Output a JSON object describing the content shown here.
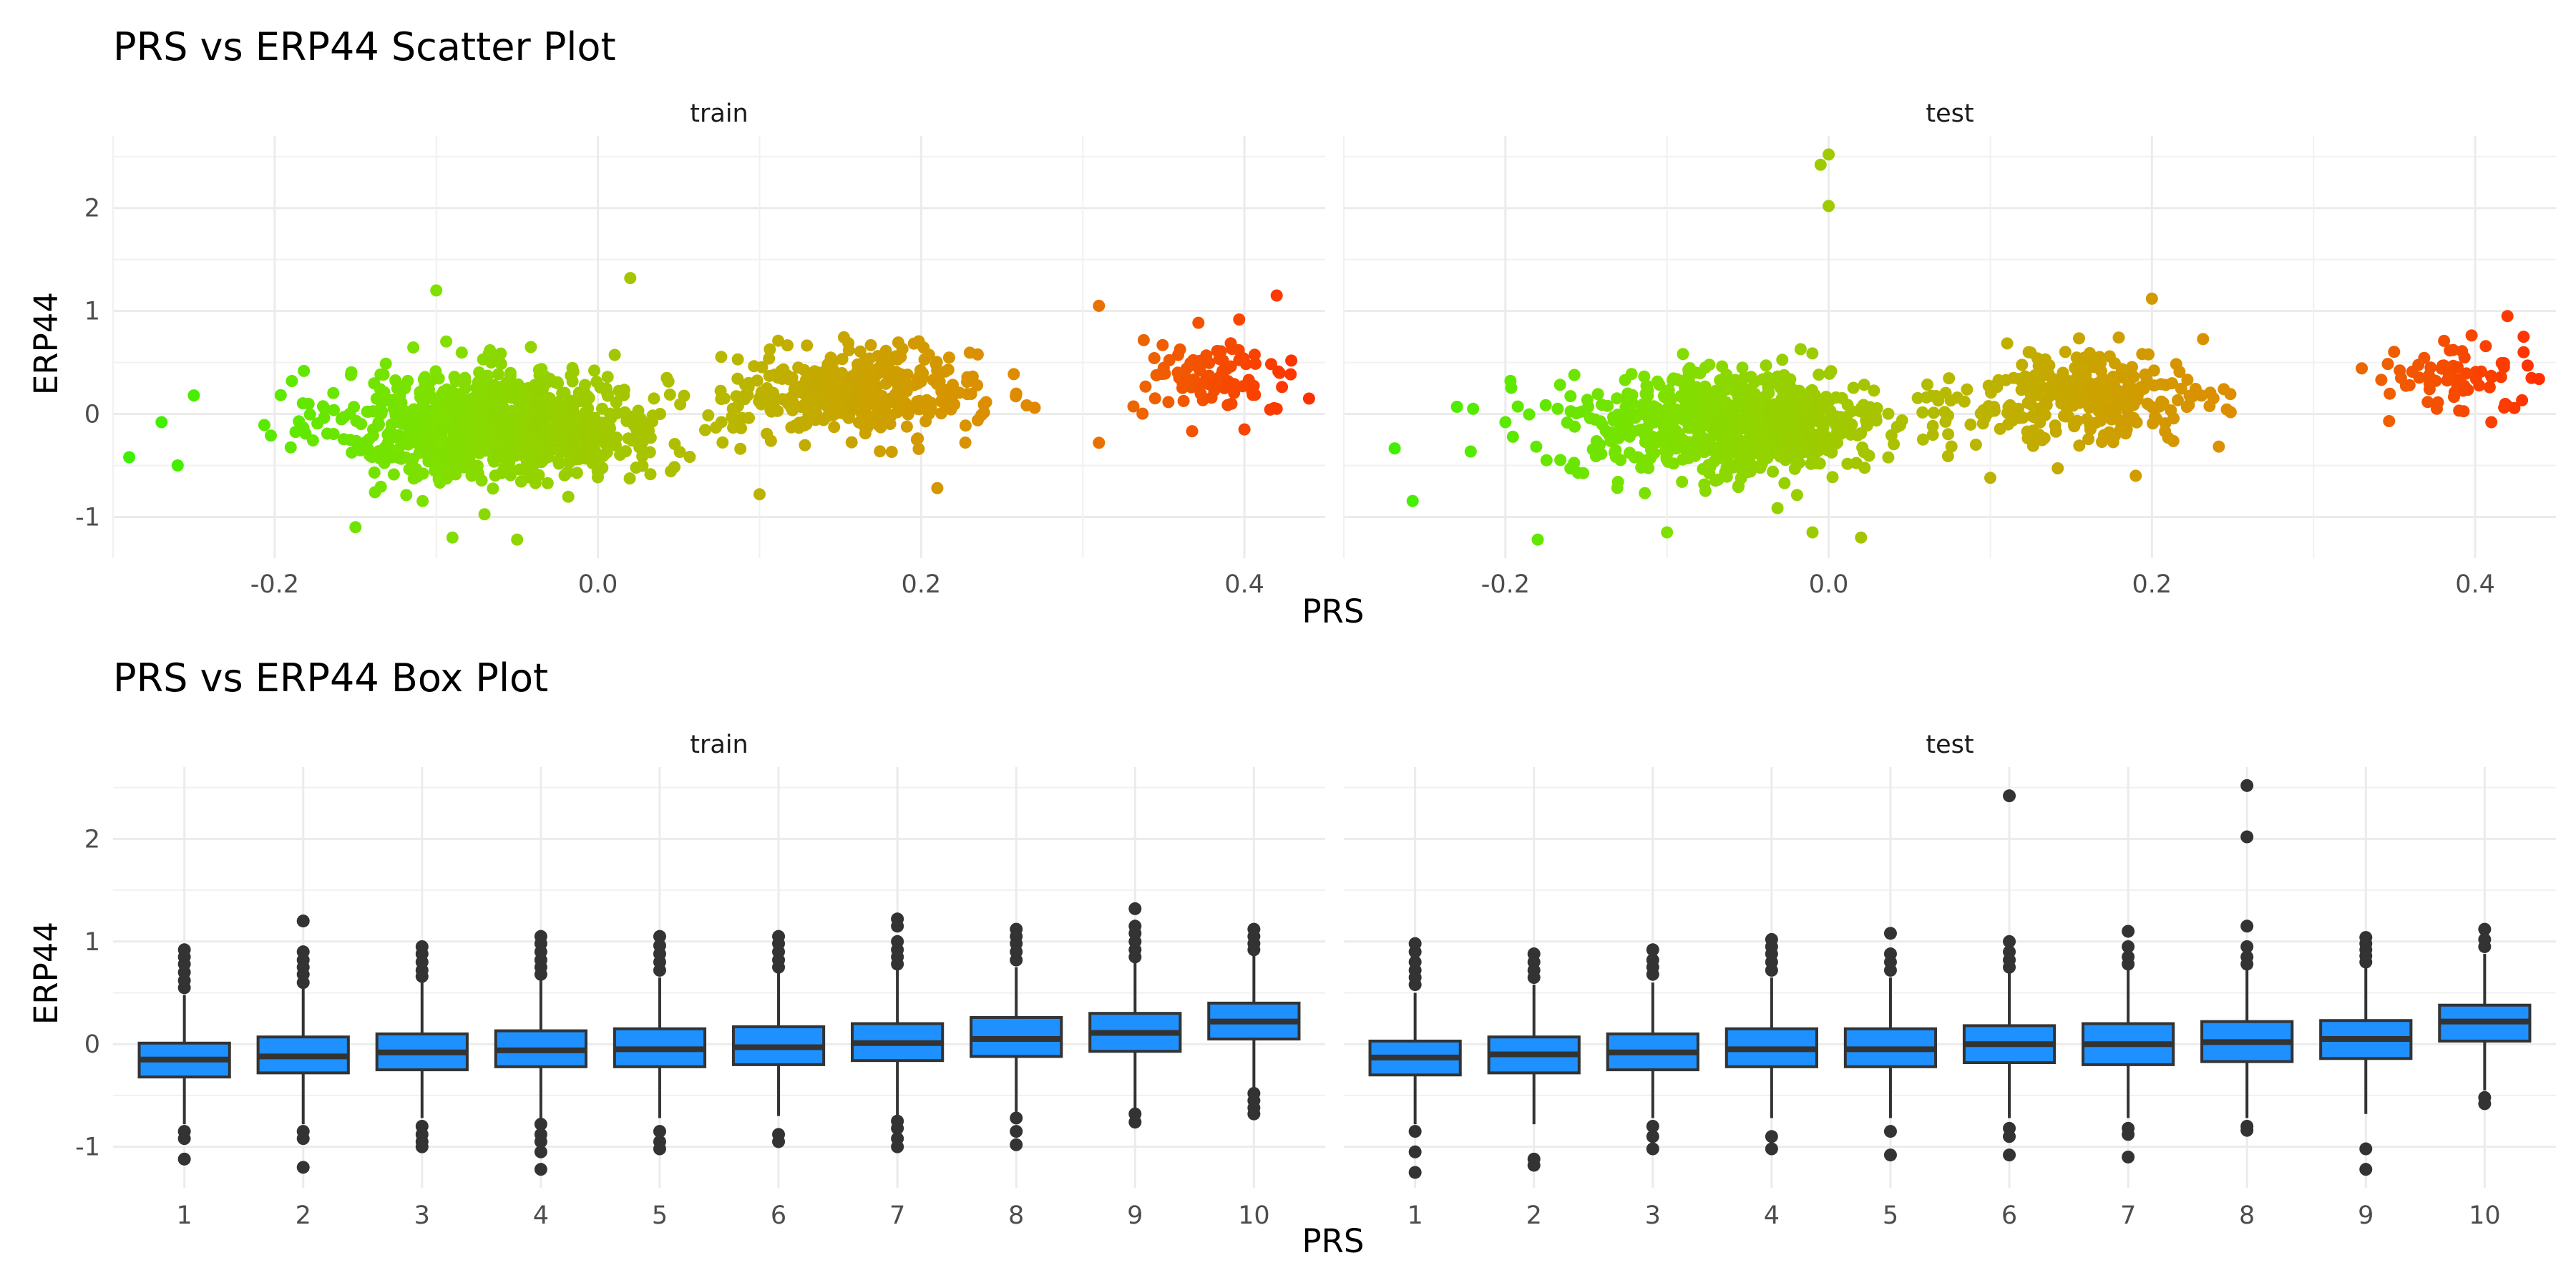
{
  "chart_data": [
    {
      "type": "scatter",
      "title": "PRS vs ERP44 Scatter Plot",
      "xlabel": "PRS",
      "ylabel": "ERP44",
      "xlim": [
        -0.3,
        0.45
      ],
      "ylim": [
        -1.4,
        2.7
      ],
      "xticks": [
        -0.2,
        0.0,
        0.2,
        0.4
      ],
      "xtick_labels": [
        "-0.2",
        "0.0",
        "0.2",
        "0.4"
      ],
      "yticks": [
        -1,
        0,
        1,
        2
      ],
      "ytick_labels": [
        "-1",
        "0",
        "1",
        "2"
      ],
      "grid": true,
      "color_gradient": [
        "#3ef000",
        "#80e000",
        "#b8b800",
        "#e08a00",
        "#ff3000"
      ],
      "color_by": "PRS",
      "panels": [
        {
          "label": "train",
          "clusters": [
            {
              "x_center": -0.06,
              "x_spread": 0.12,
              "y_center": -0.1,
              "y_spread": 0.7,
              "n": 900
            },
            {
              "x_center": 0.16,
              "x_spread": 0.09,
              "y_center": 0.2,
              "y_spread": 0.55,
              "n": 380
            },
            {
              "x_center": 0.38,
              "x_spread": 0.06,
              "y_center": 0.35,
              "y_spread": 0.45,
              "n": 90
            }
          ],
          "points": [
            {
              "x": -0.29,
              "y": -0.42
            },
            {
              "x": -0.27,
              "y": -0.08
            },
            {
              "x": -0.25,
              "y": 0.18
            },
            {
              "x": -0.26,
              "y": -0.5
            },
            {
              "x": -0.1,
              "y": 1.2
            },
            {
              "x": -0.15,
              "y": -1.1
            },
            {
              "x": -0.09,
              "y": -1.2
            },
            {
              "x": -0.05,
              "y": -1.22
            },
            {
              "x": 0.02,
              "y": 1.32
            },
            {
              "x": 0.1,
              "y": -0.78
            },
            {
              "x": 0.21,
              "y": -0.72
            },
            {
              "x": 0.31,
              "y": 1.05
            },
            {
              "x": 0.42,
              "y": 1.15
            },
            {
              "x": 0.44,
              "y": 0.15
            },
            {
              "x": 0.42,
              "y": 0.05
            },
            {
              "x": 0.31,
              "y": -0.28
            },
            {
              "x": 0.4,
              "y": -0.15
            }
          ]
        },
        {
          "label": "test",
          "clusters": [
            {
              "x_center": -0.06,
              "x_spread": 0.12,
              "y_center": -0.1,
              "y_spread": 0.7,
              "n": 700
            },
            {
              "x_center": 0.16,
              "x_spread": 0.09,
              "y_center": 0.15,
              "y_spread": 0.55,
              "n": 300
            },
            {
              "x_center": 0.38,
              "x_spread": 0.06,
              "y_center": 0.35,
              "y_spread": 0.45,
              "n": 70
            }
          ],
          "points": [
            {
              "x": -0.23,
              "y": 0.07
            },
            {
              "x": -0.22,
              "y": 0.05
            },
            {
              "x": -0.2,
              "y": -0.08
            },
            {
              "x": -0.18,
              "y": -1.22
            },
            {
              "x": -0.005,
              "y": 2.42
            },
            {
              "x": 0.0,
              "y": 2.52
            },
            {
              "x": 0.0,
              "y": 2.02
            },
            {
              "x": -0.1,
              "y": -1.15
            },
            {
              "x": -0.01,
              "y": -1.15
            },
            {
              "x": 0.02,
              "y": -1.2
            },
            {
              "x": 0.2,
              "y": 1.12
            },
            {
              "x": 0.42,
              "y": 0.95
            },
            {
              "x": 0.43,
              "y": 0.6
            },
            {
              "x": 0.43,
              "y": 0.75
            },
            {
              "x": 0.41,
              "y": -0.08
            },
            {
              "x": 0.1,
              "y": -0.62
            },
            {
              "x": 0.19,
              "y": -0.6
            }
          ]
        }
      ]
    },
    {
      "type": "box",
      "title": "PRS vs ERP44 Box Plot",
      "xlabel": "PRS",
      "ylabel": "ERP44",
      "categories": [
        "1",
        "2",
        "3",
        "4",
        "5",
        "6",
        "7",
        "8",
        "9",
        "10"
      ],
      "ylim": [
        -1.4,
        2.7
      ],
      "yticks": [
        -1,
        0,
        1,
        2
      ],
      "ytick_labels": [
        "-1",
        "0",
        "1",
        "2"
      ],
      "grid": true,
      "box_color": "#1e90ff",
      "panels": [
        {
          "label": "train",
          "boxes": [
            {
              "q1": -0.32,
              "median": -0.15,
              "q3": 0.01,
              "whisker_low": -0.78,
              "whisker_high": 0.48,
              "outliers": [
                0.55,
                0.62,
                0.7,
                0.78,
                0.85,
                0.92,
                -0.85,
                -0.92,
                -1.12
              ]
            },
            {
              "q1": -0.28,
              "median": -0.12,
              "q3": 0.07,
              "whisker_low": -0.78,
              "whisker_high": 0.55,
              "outliers": [
                0.6,
                0.68,
                0.75,
                0.82,
                0.9,
                1.2,
                -0.85,
                -0.92,
                -1.2
              ]
            },
            {
              "q1": -0.25,
              "median": -0.08,
              "q3": 0.1,
              "whisker_low": -0.72,
              "whisker_high": 0.6,
              "outliers": [
                0.66,
                0.72,
                0.8,
                0.88,
                0.95,
                -0.8,
                -0.88,
                -0.95,
                -1.0
              ]
            },
            {
              "q1": -0.22,
              "median": -0.06,
              "q3": 0.13,
              "whisker_low": -0.72,
              "whisker_high": 0.62,
              "outliers": [
                0.68,
                0.75,
                0.82,
                0.9,
                0.98,
                1.05,
                -0.78,
                -0.88,
                -0.95,
                -1.05,
                -1.22
              ]
            },
            {
              "q1": -0.22,
              "median": -0.05,
              "q3": 0.15,
              "whisker_low": -0.72,
              "whisker_high": 0.65,
              "outliers": [
                0.72,
                0.8,
                0.88,
                0.96,
                1.05,
                -0.85,
                -0.95,
                -1.02
              ]
            },
            {
              "q1": -0.2,
              "median": -0.03,
              "q3": 0.17,
              "whisker_low": -0.7,
              "whisker_high": 0.7,
              "outliers": [
                0.75,
                0.82,
                0.9,
                0.98,
                1.05,
                -0.88,
                -0.95
              ]
            },
            {
              "q1": -0.16,
              "median": 0.01,
              "q3": 0.2,
              "whisker_low": -0.7,
              "whisker_high": 0.72,
              "outliers": [
                0.78,
                0.85,
                0.92,
                1.0,
                1.15,
                1.22,
                -0.75,
                -0.82,
                -0.92,
                -1.0
              ]
            },
            {
              "q1": -0.12,
              "median": 0.05,
              "q3": 0.26,
              "whisker_low": -0.68,
              "whisker_high": 0.75,
              "outliers": [
                0.82,
                0.9,
                0.98,
                1.05,
                1.12,
                -0.72,
                -0.85,
                -0.98
              ]
            },
            {
              "q1": -0.07,
              "median": 0.11,
              "q3": 0.3,
              "whisker_low": -0.65,
              "whisker_high": 0.8,
              "outliers": [
                0.85,
                0.92,
                1.0,
                1.08,
                1.15,
                1.32,
                -0.68,
                -0.76
              ]
            },
            {
              "q1": 0.05,
              "median": 0.22,
              "q3": 0.4,
              "whisker_low": -0.42,
              "whisker_high": 0.88,
              "outliers": [
                0.92,
                0.98,
                1.05,
                1.12,
                -0.48,
                -0.55,
                -0.62,
                -0.68
              ]
            }
          ]
        },
        {
          "label": "test",
          "boxes": [
            {
              "q1": -0.3,
              "median": -0.13,
              "q3": 0.03,
              "whisker_low": -0.78,
              "whisker_high": 0.5,
              "outliers": [
                0.58,
                0.65,
                0.72,
                0.8,
                0.9,
                0.98,
                -0.85,
                -1.05,
                -1.25
              ]
            },
            {
              "q1": -0.28,
              "median": -0.1,
              "q3": 0.07,
              "whisker_low": -0.78,
              "whisker_high": 0.58,
              "outliers": [
                0.65,
                0.72,
                0.8,
                0.88,
                -1.12,
                -1.18
              ]
            },
            {
              "q1": -0.25,
              "median": -0.08,
              "q3": 0.1,
              "whisker_low": -0.72,
              "whisker_high": 0.6,
              "outliers": [
                0.68,
                0.75,
                0.82,
                0.92,
                -0.8,
                -0.9,
                -1.02
              ]
            },
            {
              "q1": -0.22,
              "median": -0.05,
              "q3": 0.15,
              "whisker_low": -0.72,
              "whisker_high": 0.65,
              "outliers": [
                0.72,
                0.8,
                0.88,
                0.95,
                1.02,
                -0.9,
                -1.02
              ]
            },
            {
              "q1": -0.22,
              "median": -0.05,
              "q3": 0.15,
              "whisker_low": -0.72,
              "whisker_high": 0.65,
              "outliers": [
                0.72,
                0.8,
                0.88,
                1.08,
                -0.85,
                -1.08
              ]
            },
            {
              "q1": -0.18,
              "median": 0.0,
              "q3": 0.18,
              "whisker_low": -0.72,
              "whisker_high": 0.7,
              "outliers": [
                0.75,
                0.82,
                0.9,
                1.0,
                2.42,
                -0.82,
                -0.9,
                -1.08
              ]
            },
            {
              "q1": -0.2,
              "median": 0.0,
              "q3": 0.2,
              "whisker_low": -0.72,
              "whisker_high": 0.72,
              "outliers": [
                0.78,
                0.85,
                0.95,
                1.1,
                -0.82,
                -0.88,
                -1.1
              ]
            },
            {
              "q1": -0.17,
              "median": 0.02,
              "q3": 0.22,
              "whisker_low": -0.72,
              "whisker_high": 0.72,
              "outliers": [
                0.78,
                0.85,
                0.95,
                1.15,
                2.02,
                2.52,
                -0.8,
                -0.84
              ]
            },
            {
              "q1": -0.14,
              "median": 0.05,
              "q3": 0.23,
              "whisker_low": -0.68,
              "whisker_high": 0.75,
              "outliers": [
                0.8,
                0.86,
                0.92,
                0.98,
                1.04,
                -1.02,
                -1.22
              ]
            },
            {
              "q1": 0.03,
              "median": 0.22,
              "q3": 0.38,
              "whisker_low": -0.45,
              "whisker_high": 0.88,
              "outliers": [
                0.95,
                1.02,
                1.12,
                -0.52,
                -0.58
              ]
            }
          ]
        }
      ]
    }
  ]
}
